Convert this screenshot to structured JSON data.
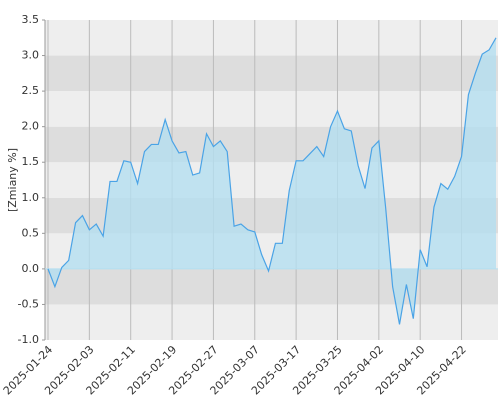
{
  "chart_data": {
    "type": "area",
    "y_label": "[Zmiany %]",
    "categories": [
      "2025-01-24",
      null,
      null,
      null,
      null,
      null,
      "2025-02-03",
      null,
      null,
      null,
      null,
      null,
      "2025-02-11",
      null,
      null,
      null,
      null,
      null,
      "2025-02-19",
      null,
      null,
      null,
      null,
      null,
      "2025-02-27",
      null,
      null,
      null,
      null,
      null,
      "2025-03-07",
      null,
      null,
      null,
      null,
      null,
      "2025-03-17",
      null,
      null,
      null,
      null,
      null,
      "2025-03-25",
      null,
      null,
      null,
      null,
      null,
      "2025-04-02",
      null,
      null,
      null,
      null,
      null,
      "2025-04-10",
      null,
      null,
      null,
      null,
      null,
      "2025-04-22",
      null,
      null,
      null,
      null,
      null
    ],
    "values": [
      0,
      -0.25,
      0.02,
      0.12,
      0.65,
      0.75,
      0.55,
      0.63,
      0.46,
      1.23,
      1.23,
      1.52,
      1.5,
      1.2,
      1.65,
      1.75,
      1.75,
      2.1,
      1.8,
      1.63,
      1.65,
      1.32,
      1.35,
      1.9,
      1.72,
      1.8,
      1.65,
      0.6,
      0.63,
      0.55,
      0.52,
      0.2,
      -0.03,
      0.36,
      0.36,
      1.1,
      1.52,
      1.52,
      1.62,
      1.72,
      1.58,
      2.0,
      2.22,
      1.97,
      1.94,
      1.45,
      1.13,
      1.7,
      1.8,
      0.85,
      -0.25,
      -0.78,
      -0.22,
      -0.7,
      0.27,
      0.03,
      0.87,
      1.2,
      1.12,
      1.3,
      1.58,
      2.45,
      2.75,
      3.02,
      3.08,
      3.25
    ],
    "color": "#4aa3e6",
    "fill": "#b4def0",
    "ylim": [
      -1,
      3.5
    ],
    "yticks": [
      {
        "value": -1,
        "label": "-1.0"
      },
      -0.5,
      {
        "value": 0,
        "label": "0.0"
      },
      0.5,
      {
        "value": 1,
        "label": "1.0"
      },
      1.5,
      {
        "value": 2,
        "label": "2.0"
      },
      2.5,
      {
        "value": 3,
        "label": "3.0"
      },
      3.5
    ],
    "grid": true
  }
}
